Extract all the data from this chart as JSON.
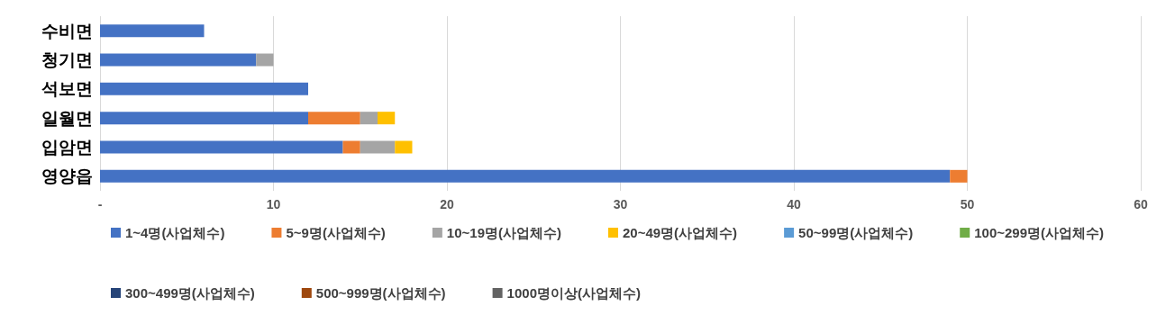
{
  "chart_data": {
    "type": "bar",
    "orientation": "horizontal",
    "stacked": true,
    "categories": [
      "수비면",
      "청기면",
      "석보면",
      "일월면",
      "입암면",
      "영양읍"
    ],
    "series": [
      {
        "name": "1~4명(사업체수)",
        "color": "#4472c4",
        "values": [
          6,
          9,
          12,
          12,
          14,
          49
        ]
      },
      {
        "name": "5~9명(사업체수)",
        "color": "#ed7d31",
        "values": [
          0,
          0,
          0,
          3,
          1,
          1
        ]
      },
      {
        "name": "10~19명(사업체수)",
        "color": "#a5a5a5",
        "values": [
          0,
          1,
          0,
          1,
          2,
          0
        ]
      },
      {
        "name": "20~49명(사업체수)",
        "color": "#ffc000",
        "values": [
          0,
          0,
          0,
          1,
          1,
          0
        ]
      },
      {
        "name": "50~99명(사업체수)",
        "color": "#5b9bd5",
        "values": [
          0,
          0,
          0,
          0,
          0,
          0
        ]
      },
      {
        "name": "100~299명(사업체수)",
        "color": "#70ad47",
        "values": [
          0,
          0,
          0,
          0,
          0,
          0
        ]
      },
      {
        "name": "300~499명(사업체수)",
        "color": "#264478",
        "values": [
          0,
          0,
          0,
          0,
          0,
          0
        ]
      },
      {
        "name": "500~999명(사업체수)",
        "color": "#9e480e",
        "values": [
          0,
          0,
          0,
          0,
          0,
          0
        ]
      },
      {
        "name": "1000명이상(사업체수)",
        "color": "#636363",
        "values": [
          0,
          0,
          0,
          0,
          0,
          0
        ]
      }
    ],
    "xlim": [
      0,
      60
    ],
    "xticks": [
      {
        "value": 0,
        "label": "-"
      },
      10,
      20,
      30,
      40,
      50,
      60
    ],
    "grid": "x",
    "legend": "bottom"
  }
}
